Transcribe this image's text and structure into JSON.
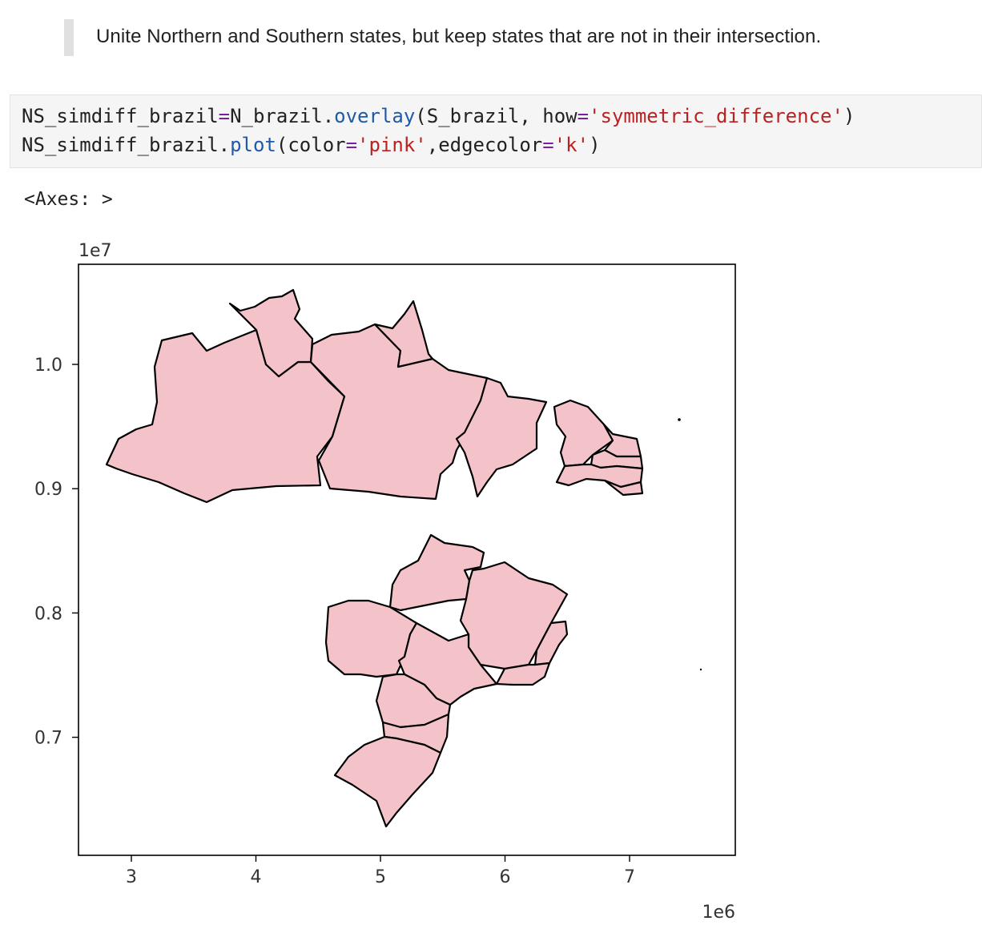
{
  "markdown": {
    "text": "Unite Northern and Southern states, but keep states that are not in their intersection."
  },
  "code": {
    "line1": [
      {
        "t": "NS_simdiff_brazil",
        "c": ""
      },
      {
        "t": "=",
        "c": "op"
      },
      {
        "t": "N_brazil.",
        "c": ""
      },
      {
        "t": "overlay",
        "c": "fn"
      },
      {
        "t": "(S_brazil, how",
        "c": ""
      },
      {
        "t": "=",
        "c": "op"
      },
      {
        "t": "'symmetric_difference'",
        "c": "str"
      },
      {
        "t": ")",
        "c": ""
      }
    ],
    "line2": [
      {
        "t": "NS_simdiff_brazil.",
        "c": ""
      },
      {
        "t": "plot",
        "c": "fn"
      },
      {
        "t": "(color",
        "c": ""
      },
      {
        "t": "=",
        "c": "op"
      },
      {
        "t": "'pink'",
        "c": "str"
      },
      {
        "t": ",edgecolor",
        "c": ""
      },
      {
        "t": "=",
        "c": "op"
      },
      {
        "t": "'k'",
        "c": "str"
      },
      {
        "t": ")",
        "c": ""
      }
    ]
  },
  "output": {
    "repr": "<Axes: >"
  },
  "plot": {
    "fill_color": "#f4c2c9",
    "edge_color": "#000000",
    "x_offset_label": "1e6",
    "y_offset_label": "1e7",
    "x_ticks": [
      {
        "label": "3",
        "value": 3
      },
      {
        "label": "4",
        "value": 4
      },
      {
        "label": "5",
        "value": 5
      },
      {
        "label": "6",
        "value": 6
      },
      {
        "label": "7",
        "value": 7
      }
    ],
    "y_ticks": [
      {
        "label": "1.0",
        "value": 1.0
      },
      {
        "label": "0.9",
        "value": 0.9
      },
      {
        "label": "0.8",
        "value": 0.8
      },
      {
        "label": "0.7",
        "value": 0.7
      }
    ]
  }
}
